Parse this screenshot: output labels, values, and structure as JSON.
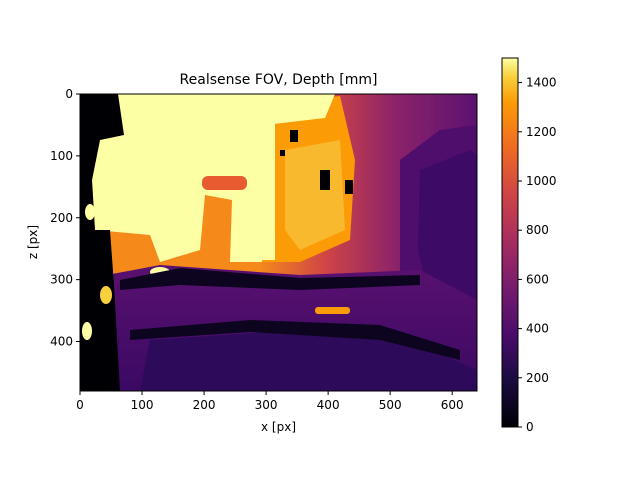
{
  "chart_data": {
    "type": "heatmap",
    "title": "Realsense FOV, Depth [mm]",
    "xlabel": "x [px]",
    "ylabel": "z [px]",
    "xlim": [
      0,
      640
    ],
    "ylim": [
      480,
      0
    ],
    "x_ticks": [
      0,
      100,
      200,
      300,
      400,
      500,
      600
    ],
    "y_ticks": [
      0,
      100,
      200,
      300,
      400
    ],
    "colormap": "inferno",
    "colorbar": {
      "range": [
        0,
        1500
      ],
      "ticks": [
        0,
        200,
        400,
        600,
        800,
        1000,
        1200,
        1400
      ]
    },
    "regions": [
      {
        "name": "background-gradient",
        "depth_left": 1250,
        "depth_right": 550,
        "depth_bottom": 420
      },
      {
        "name": "far-wall-bright",
        "depth": 1500
      },
      {
        "name": "mid-highlight",
        "depth": 1150
      },
      {
        "name": "orange-bar",
        "depth": 1050
      },
      {
        "name": "floor-purple",
        "depth": 420
      },
      {
        "name": "near-dark",
        "depth": 280
      },
      {
        "name": "invalid-zero",
        "depth": 0
      }
    ]
  }
}
